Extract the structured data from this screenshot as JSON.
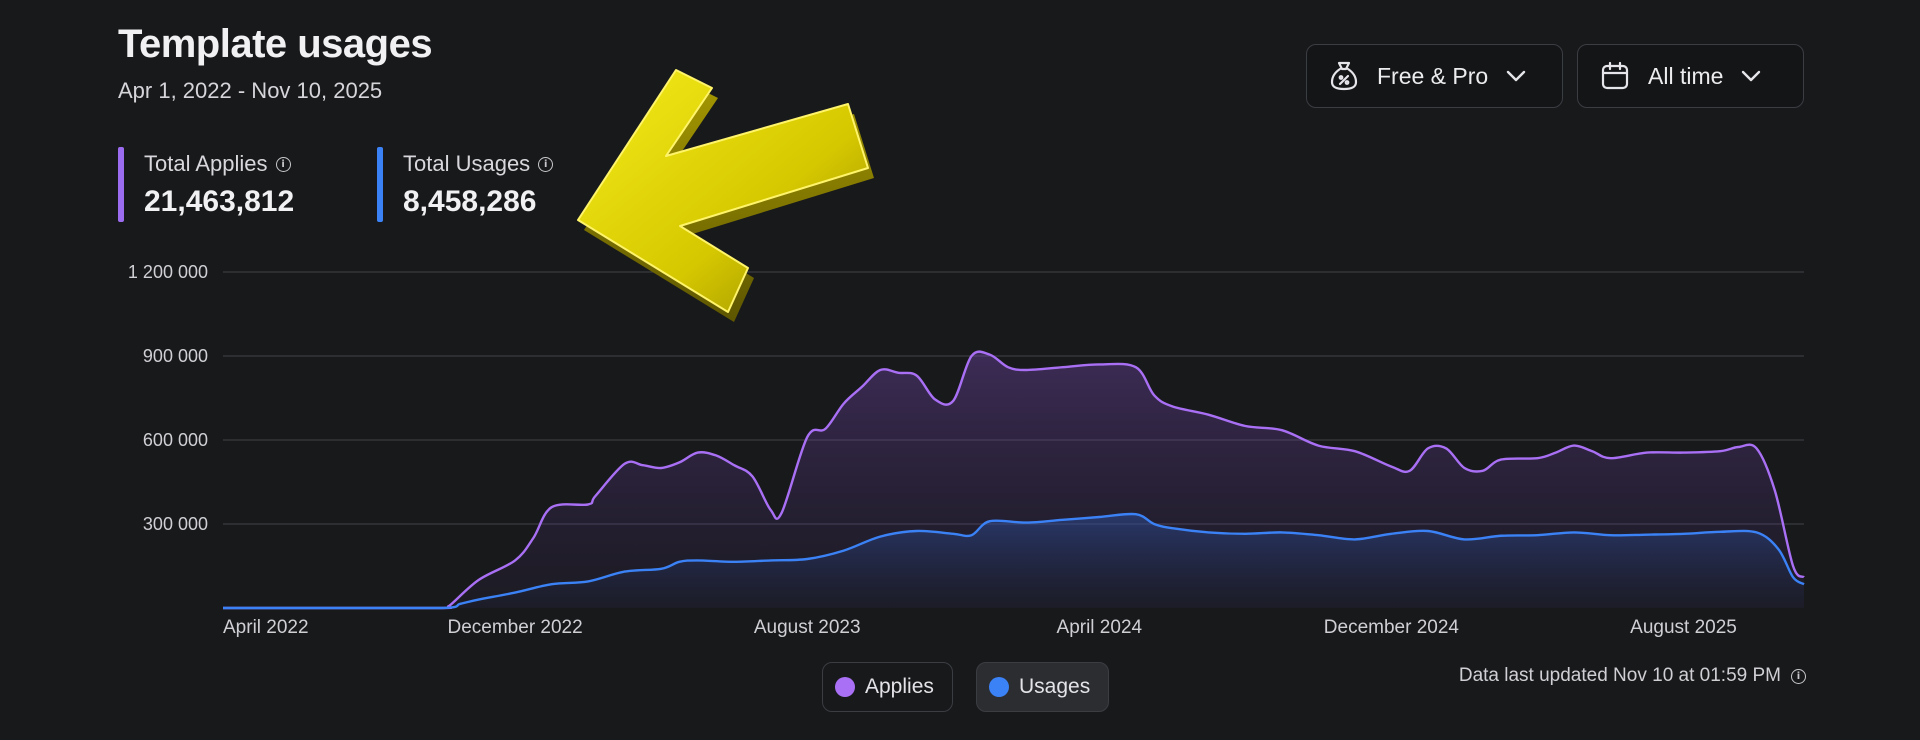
{
  "header": {
    "title": "Template usages",
    "date_range": "Apr 1, 2022 - Nov 10, 2025"
  },
  "metrics": [
    {
      "label": "Total Applies",
      "value": "21,463,812",
      "color": "#9b6cf0"
    },
    {
      "label": "Total Usages",
      "value": "8,458,286",
      "color": "#3b82f6"
    }
  ],
  "filters": {
    "plan": {
      "label": "Free & Pro",
      "icon": "money-bag-icon"
    },
    "time": {
      "label": "All time",
      "icon": "calendar-icon"
    }
  },
  "legend": [
    {
      "label": "Applies",
      "color": "#a970f5"
    },
    {
      "label": "Usages",
      "color": "#3b82f6"
    }
  ],
  "footer": {
    "updated": "Data last updated Nov 10 at 01:59 PM"
  },
  "chart_data": {
    "type": "area",
    "y_ticks": [
      {
        "value": 300000,
        "label": "300 000"
      },
      {
        "value": 600000,
        "label": "600 000"
      },
      {
        "value": 900000,
        "label": "900 000"
      },
      {
        "value": 1200000,
        "label": "1 200 000"
      }
    ],
    "ylim": [
      0,
      1200000
    ],
    "x_ticks": [
      {
        "t": 0,
        "label": "April 2022"
      },
      {
        "t": 8,
        "label": "December 2022"
      },
      {
        "t": 16,
        "label": "August 2023"
      },
      {
        "t": 24,
        "label": "April 2024"
      },
      {
        "t": 32,
        "label": "December 2024"
      },
      {
        "t": 40,
        "label": "August 2025"
      }
    ],
    "xlim": [
      0,
      43.3
    ],
    "grid": true,
    "series": [
      {
        "name": "Applies",
        "color": "#a970f5",
        "points": [
          [
            0,
            0
          ],
          [
            3,
            0
          ],
          [
            6,
            0
          ],
          [
            6.2,
            8000
          ],
          [
            7,
            100000
          ],
          [
            8,
            170000
          ],
          [
            8.5,
            250000
          ],
          [
            9,
            360000
          ],
          [
            10,
            370000
          ],
          [
            10.2,
            400000
          ],
          [
            11,
            515000
          ],
          [
            11.5,
            510000
          ],
          [
            12,
            500000
          ],
          [
            12.5,
            520000
          ],
          [
            13,
            555000
          ],
          [
            13.5,
            545000
          ],
          [
            14,
            510000
          ],
          [
            14.5,
            470000
          ],
          [
            15,
            350000
          ],
          [
            15.3,
            340000
          ],
          [
            16,
            610000
          ],
          [
            16.5,
            640000
          ],
          [
            17,
            730000
          ],
          [
            17.5,
            790000
          ],
          [
            18,
            850000
          ],
          [
            18.5,
            840000
          ],
          [
            19,
            830000
          ],
          [
            19.5,
            745000
          ],
          [
            20,
            740000
          ],
          [
            20.5,
            900000
          ],
          [
            21,
            905000
          ],
          [
            21.5,
            860000
          ],
          [
            22,
            850000
          ],
          [
            23,
            860000
          ],
          [
            24,
            870000
          ],
          [
            25,
            860000
          ],
          [
            25.5,
            760000
          ],
          [
            26,
            720000
          ],
          [
            27,
            690000
          ],
          [
            28,
            650000
          ],
          [
            29,
            635000
          ],
          [
            30,
            580000
          ],
          [
            31,
            560000
          ],
          [
            32,
            505000
          ],
          [
            32.5,
            490000
          ],
          [
            33,
            570000
          ],
          [
            33.5,
            570000
          ],
          [
            34,
            500000
          ],
          [
            34.5,
            490000
          ],
          [
            35,
            530000
          ],
          [
            36,
            535000
          ],
          [
            36.5,
            555000
          ],
          [
            37,
            580000
          ],
          [
            37.5,
            560000
          ],
          [
            38,
            535000
          ],
          [
            39,
            555000
          ],
          [
            40,
            555000
          ],
          [
            41,
            560000
          ],
          [
            41.5,
            575000
          ],
          [
            42,
            570000
          ],
          [
            42.5,
            420000
          ],
          [
            43,
            150000
          ],
          [
            43.3,
            110000
          ]
        ]
      },
      {
        "name": "Usages",
        "color": "#3b82f6",
        "points": [
          [
            0,
            0
          ],
          [
            3,
            0
          ],
          [
            6,
            0
          ],
          [
            6.5,
            15000
          ],
          [
            7,
            30000
          ],
          [
            8,
            55000
          ],
          [
            9,
            85000
          ],
          [
            10,
            95000
          ],
          [
            11,
            130000
          ],
          [
            12,
            140000
          ],
          [
            12.5,
            165000
          ],
          [
            13,
            170000
          ],
          [
            14,
            165000
          ],
          [
            15,
            170000
          ],
          [
            16,
            175000
          ],
          [
            17,
            205000
          ],
          [
            18,
            255000
          ],
          [
            19,
            275000
          ],
          [
            20,
            265000
          ],
          [
            20.5,
            260000
          ],
          [
            21,
            310000
          ],
          [
            22,
            305000
          ],
          [
            23,
            315000
          ],
          [
            24,
            325000
          ],
          [
            25,
            335000
          ],
          [
            25.5,
            300000
          ],
          [
            26,
            285000
          ],
          [
            27,
            270000
          ],
          [
            28,
            265000
          ],
          [
            29,
            270000
          ],
          [
            30,
            260000
          ],
          [
            31,
            245000
          ],
          [
            32,
            265000
          ],
          [
            33,
            275000
          ],
          [
            34,
            245000
          ],
          [
            35,
            258000
          ],
          [
            36,
            260000
          ],
          [
            37,
            270000
          ],
          [
            38,
            260000
          ],
          [
            39,
            262000
          ],
          [
            40,
            265000
          ],
          [
            41,
            272000
          ],
          [
            42,
            270000
          ],
          [
            42.6,
            210000
          ],
          [
            43,
            110000
          ],
          [
            43.3,
            85000
          ]
        ]
      }
    ]
  }
}
